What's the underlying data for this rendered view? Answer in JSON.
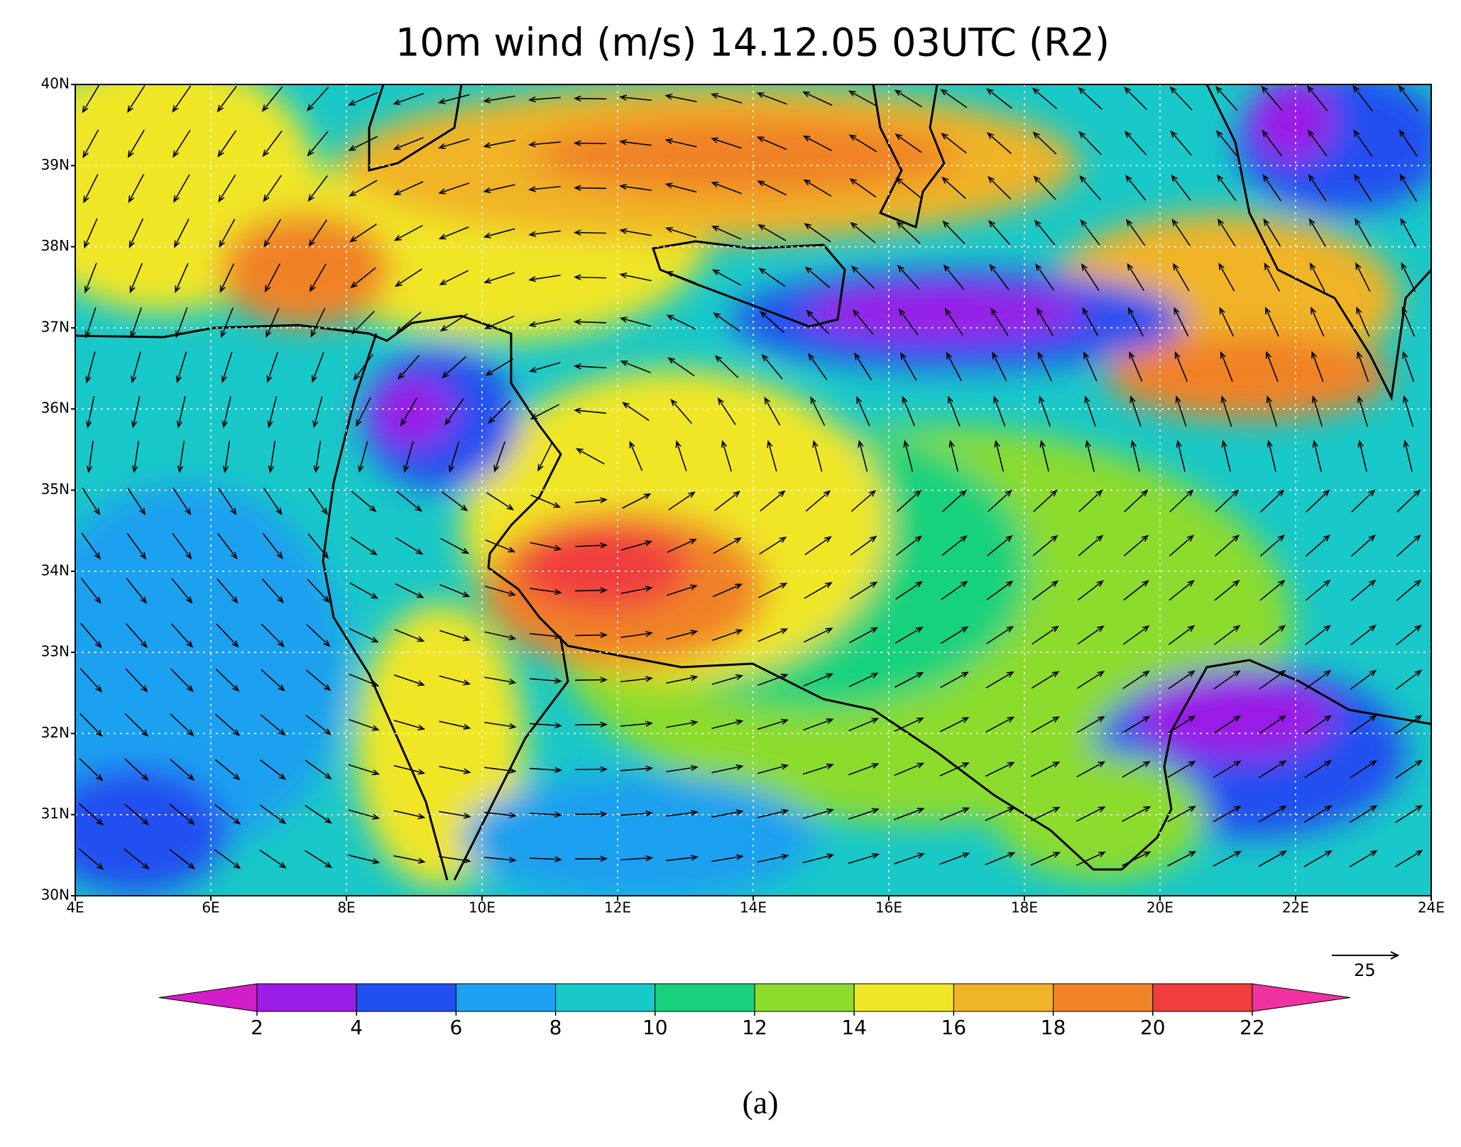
{
  "chart_data": {
    "type": "vector-field",
    "title": "10m wind (m/s) 14.12.05 03UTC (R2)",
    "xlim": [
      4,
      24
    ],
    "xticks": [
      {
        "value": 4,
        "label": "4E"
      },
      {
        "value": 6,
        "label": "6E"
      },
      {
        "value": 8,
        "label": "8E"
      },
      {
        "value": 10,
        "label": "10E"
      },
      {
        "value": 12,
        "label": "12E"
      },
      {
        "value": 14,
        "label": "14E"
      },
      {
        "value": 16,
        "label": "16E"
      },
      {
        "value": 18,
        "label": "18E"
      },
      {
        "value": 20,
        "label": "20E"
      },
      {
        "value": 22,
        "label": "22E"
      },
      {
        "value": 24,
        "label": "24E"
      }
    ],
    "ylim": [
      30,
      40
    ],
    "yticks": [
      {
        "value": 30,
        "label": "30N"
      },
      {
        "value": 31,
        "label": "31N"
      },
      {
        "value": 32,
        "label": "32N"
      },
      {
        "value": 33,
        "label": "33N"
      },
      {
        "value": 34,
        "label": "34N"
      },
      {
        "value": 35,
        "label": "35N"
      },
      {
        "value": 36,
        "label": "36N"
      },
      {
        "value": 37,
        "label": "37N"
      },
      {
        "value": 38,
        "label": "38N"
      },
      {
        "value": 39,
        "label": "39N"
      },
      {
        "value": 40,
        "label": "40N"
      }
    ],
    "grid": true,
    "reference_vector": 25,
    "colorbar": {
      "levels": [
        2,
        4,
        6,
        8,
        10,
        12,
        14,
        16,
        18,
        20,
        22
      ],
      "colors": [
        "#d21ec8",
        "#9a1ee6",
        "#2050f0",
        "#1ea0f0",
        "#19c8c8",
        "#19d27d",
        "#8cdc2d",
        "#f0e628",
        "#f0b428",
        "#f08228",
        "#f03c3c",
        "#f032a0"
      ]
    }
  },
  "caption": "(a)"
}
